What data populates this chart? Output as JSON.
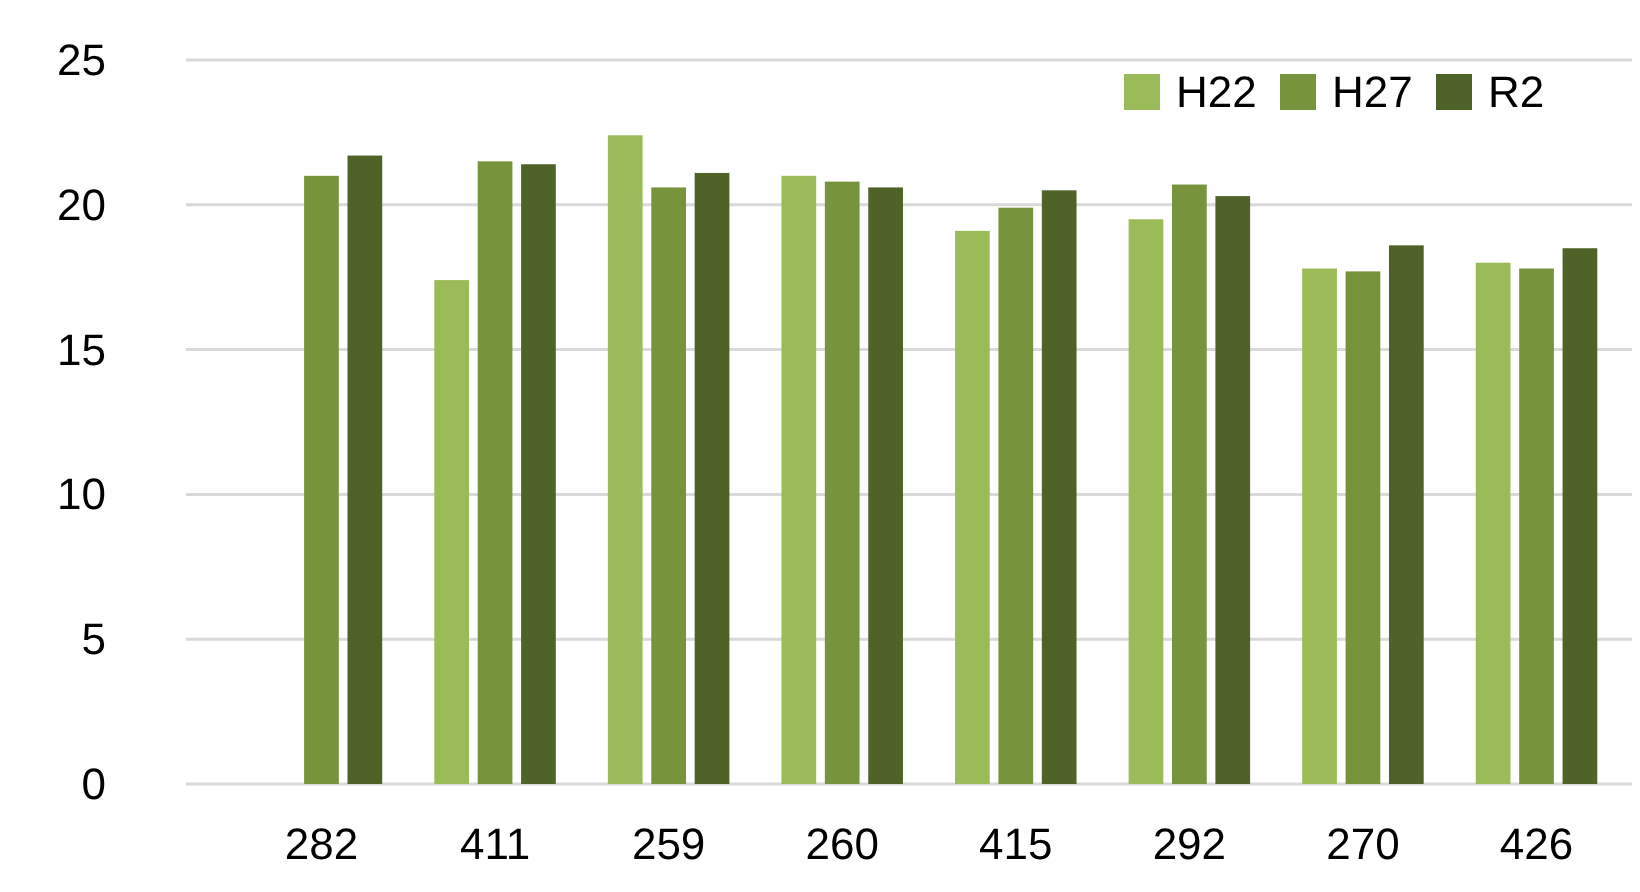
{
  "chart_data": {
    "type": "bar",
    "categories": [
      "282",
      "411",
      "259",
      "260",
      "415",
      "292",
      "270",
      "426"
    ],
    "series": [
      {
        "name": "H22",
        "color": "#9bbb59",
        "values": [
          null,
          17.4,
          22.4,
          21.0,
          19.1,
          19.5,
          17.8,
          18.0
        ]
      },
      {
        "name": "H27",
        "color": "#77933c",
        "values": [
          21.0,
          21.5,
          20.6,
          20.8,
          19.9,
          20.7,
          17.7,
          17.8
        ]
      },
      {
        "name": "R2",
        "color": "#4f6228",
        "values": [
          21.7,
          21.4,
          21.1,
          20.6,
          20.5,
          20.3,
          18.6,
          18.5
        ]
      }
    ],
    "ylim": [
      0,
      25
    ],
    "yticks": [
      0,
      5,
      10,
      15,
      20,
      25
    ],
    "grid": "y",
    "legend": "top right"
  }
}
